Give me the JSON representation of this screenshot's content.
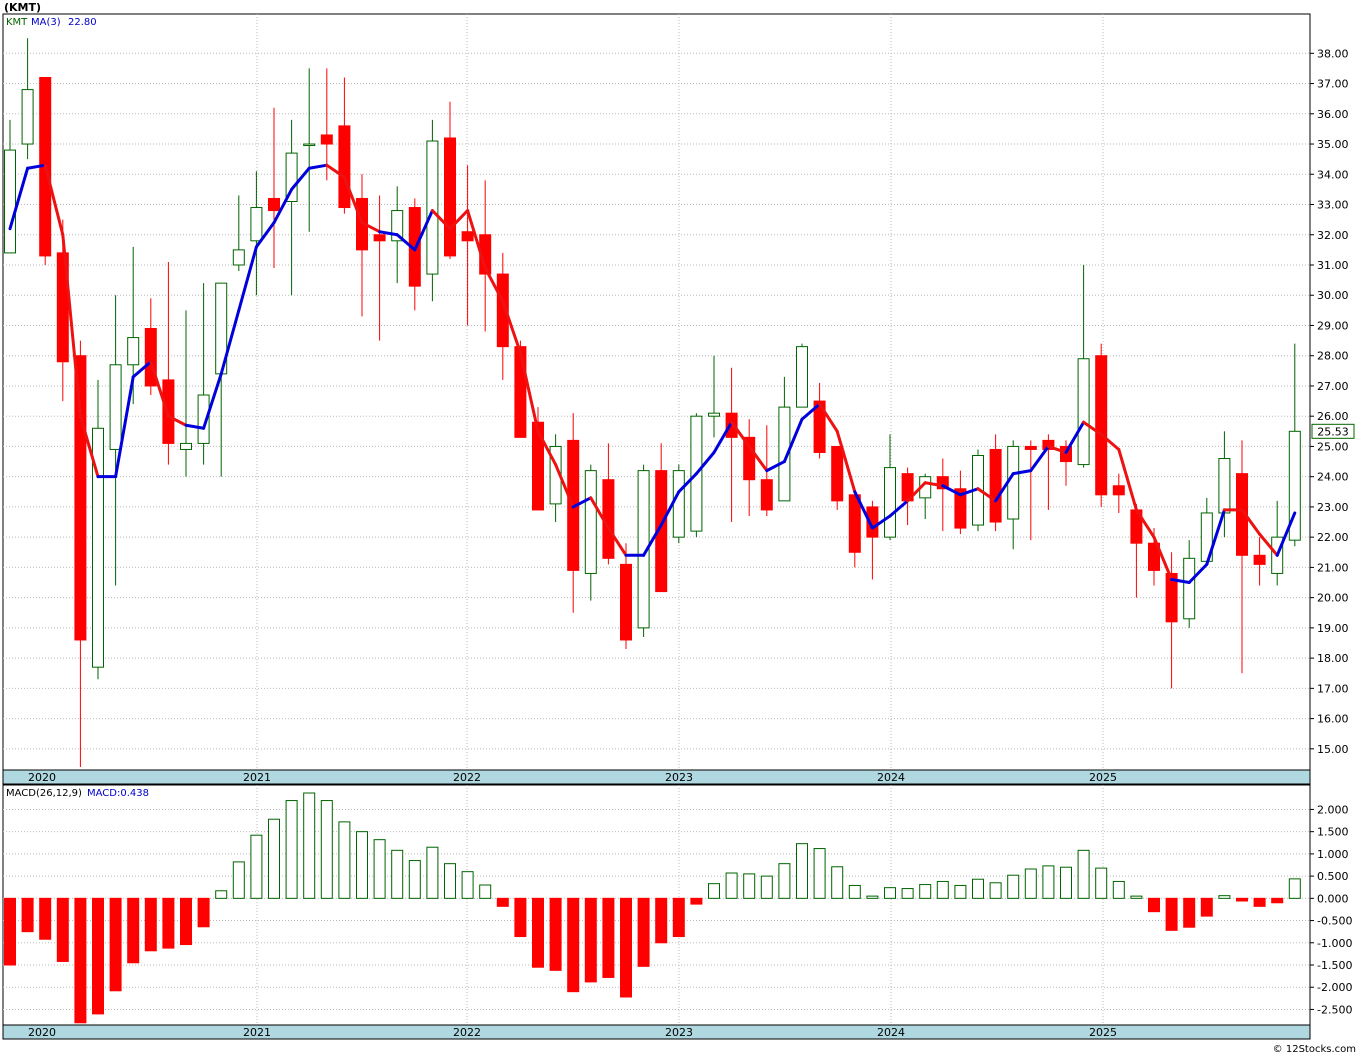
{
  "chart_data": [
    {
      "type": "candlestick",
      "title": "(KMT)",
      "legend": {
        "symbol": "KMT",
        "ma_label": "MA(3)",
        "ma_value": "22.80"
      },
      "last_price_label": "25.53",
      "ylim": [
        14.3,
        39.3
      ],
      "y_ticks": [
        "38.00",
        "37.00",
        "36.00",
        "35.00",
        "34.00",
        "33.00",
        "32.00",
        "31.00",
        "30.00",
        "29.00",
        "28.00",
        "27.00",
        "26.00",
        "25.00",
        "24.00",
        "23.00",
        "22.00",
        "21.00",
        "20.00",
        "19.00",
        "18.00",
        "17.00",
        "16.00",
        "15.00"
      ],
      "x_year_labels": [
        "2020",
        "2021",
        "2022",
        "2023",
        "2024",
        "2025"
      ],
      "colors": {
        "up": "#006400",
        "down": "#ff0000",
        "ma_up": "#0000dd",
        "ma_down": "#ee1111",
        "grid": "#bbbbbb",
        "axis_band": "#b0d8e0"
      },
      "months": [
        {
          "o": 31.4,
          "h": 35.8,
          "l": 31.4,
          "c": 34.8
        },
        {
          "o": 35.0,
          "h": 38.5,
          "l": 34.5,
          "c": 36.8
        },
        {
          "o": 37.2,
          "h": 37.2,
          "l": 31.0,
          "c": 31.3
        },
        {
          "o": 31.4,
          "h": 32.5,
          "l": 26.5,
          "c": 27.8
        },
        {
          "o": 28.0,
          "h": 28.5,
          "l": 14.4,
          "c": 18.6
        },
        {
          "o": 17.7,
          "h": 27.2,
          "l": 17.3,
          "c": 25.6
        },
        {
          "o": 24.9,
          "h": 30.0,
          "l": 20.4,
          "c": 27.7
        },
        {
          "o": 27.7,
          "h": 31.6,
          "l": 26.4,
          "c": 28.6
        },
        {
          "o": 28.9,
          "h": 29.9,
          "l": 26.7,
          "c": 27.0
        },
        {
          "o": 27.2,
          "h": 31.1,
          "l": 24.4,
          "c": 25.1
        },
        {
          "o": 24.9,
          "h": 29.5,
          "l": 24.0,
          "c": 25.1
        },
        {
          "o": 25.1,
          "h": 30.4,
          "l": 24.4,
          "c": 26.7
        },
        {
          "o": 27.4,
          "h": 30.4,
          "l": 24.0,
          "c": 30.4
        },
        {
          "o": 31.0,
          "h": 33.3,
          "l": 30.8,
          "c": 31.5
        },
        {
          "o": 31.8,
          "h": 34.1,
          "l": 30.0,
          "c": 32.9
        },
        {
          "o": 33.2,
          "h": 36.2,
          "l": 30.9,
          "c": 32.8
        },
        {
          "o": 33.1,
          "h": 35.8,
          "l": 30.0,
          "c": 34.7
        },
        {
          "o": 35.0,
          "h": 37.5,
          "l": 32.1,
          "c": 35.0
        },
        {
          "o": 35.3,
          "h": 37.5,
          "l": 33.8,
          "c": 35.0
        },
        {
          "o": 35.6,
          "h": 37.2,
          "l": 32.7,
          "c": 32.9
        },
        {
          "o": 33.2,
          "h": 34.0,
          "l": 29.3,
          "c": 31.5
        },
        {
          "o": 32.0,
          "h": 33.3,
          "l": 28.5,
          "c": 31.8
        },
        {
          "o": 31.8,
          "h": 33.6,
          "l": 30.4,
          "c": 32.8
        },
        {
          "o": 32.9,
          "h": 33.2,
          "l": 29.5,
          "c": 30.3
        },
        {
          "o": 30.7,
          "h": 35.8,
          "l": 29.8,
          "c": 35.1
        },
        {
          "o": 35.2,
          "h": 36.4,
          "l": 31.2,
          "c": 31.3
        },
        {
          "o": 32.1,
          "h": 34.3,
          "l": 29.0,
          "c": 31.8
        },
        {
          "o": 32.0,
          "h": 33.8,
          "l": 28.8,
          "c": 30.7
        },
        {
          "o": 30.7,
          "h": 31.4,
          "l": 27.2,
          "c": 28.3
        },
        {
          "o": 28.3,
          "h": 28.5,
          "l": 25.3,
          "c": 25.3
        },
        {
          "o": 25.8,
          "h": 26.3,
          "l": 22.9,
          "c": 22.9
        },
        {
          "o": 23.1,
          "h": 25.4,
          "l": 22.5,
          "c": 25.0
        },
        {
          "o": 25.2,
          "h": 26.1,
          "l": 19.5,
          "c": 20.9
        },
        {
          "o": 20.8,
          "h": 24.4,
          "l": 19.9,
          "c": 24.2
        },
        {
          "o": 23.9,
          "h": 25.1,
          "l": 21.1,
          "c": 21.3
        },
        {
          "o": 21.1,
          "h": 21.8,
          "l": 18.3,
          "c": 18.6
        },
        {
          "o": 19.0,
          "h": 24.4,
          "l": 18.7,
          "c": 24.2
        },
        {
          "o": 24.2,
          "h": 25.1,
          "l": 20.2,
          "c": 20.2
        },
        {
          "o": 22.0,
          "h": 24.4,
          "l": 21.8,
          "c": 24.2
        },
        {
          "o": 22.2,
          "h": 26.1,
          "l": 22.0,
          "c": 26.0
        },
        {
          "o": 26.0,
          "h": 28.0,
          "l": 25.3,
          "c": 26.1
        },
        {
          "o": 26.1,
          "h": 27.6,
          "l": 22.5,
          "c": 25.3
        },
        {
          "o": 25.3,
          "h": 25.9,
          "l": 22.7,
          "c": 23.9
        },
        {
          "o": 23.9,
          "h": 25.7,
          "l": 22.7,
          "c": 22.9
        },
        {
          "o": 23.2,
          "h": 27.3,
          "l": 23.2,
          "c": 26.3
        },
        {
          "o": 26.3,
          "h": 28.4,
          "l": 26.3,
          "c": 28.3
        },
        {
          "o": 26.5,
          "h": 27.1,
          "l": 24.6,
          "c": 24.8
        },
        {
          "o": 25.0,
          "h": 25.0,
          "l": 22.9,
          "c": 23.2
        },
        {
          "o": 23.4,
          "h": 23.5,
          "l": 21.0,
          "c": 21.5
        },
        {
          "o": 23.0,
          "h": 23.2,
          "l": 20.6,
          "c": 22.0
        },
        {
          "o": 22.0,
          "h": 25.4,
          "l": 21.9,
          "c": 24.3
        },
        {
          "o": 24.1,
          "h": 24.3,
          "l": 22.4,
          "c": 23.2
        },
        {
          "o": 23.3,
          "h": 24.1,
          "l": 22.6,
          "c": 24.0
        },
        {
          "o": 24.0,
          "h": 24.6,
          "l": 22.2,
          "c": 23.6
        },
        {
          "o": 23.6,
          "h": 24.2,
          "l": 22.1,
          "c": 22.3
        },
        {
          "o": 22.4,
          "h": 24.9,
          "l": 22.2,
          "c": 24.7
        },
        {
          "o": 24.9,
          "h": 25.4,
          "l": 22.2,
          "c": 22.5
        },
        {
          "o": 22.6,
          "h": 25.2,
          "l": 21.6,
          "c": 25.0
        },
        {
          "o": 25.0,
          "h": 25.2,
          "l": 21.9,
          "c": 24.9
        },
        {
          "o": 25.2,
          "h": 25.4,
          "l": 22.9,
          "c": 24.9
        },
        {
          "o": 25.0,
          "h": 25.2,
          "l": 23.7,
          "c": 24.5
        },
        {
          "o": 24.4,
          "h": 31.0,
          "l": 24.3,
          "c": 27.9
        },
        {
          "o": 28.0,
          "h": 28.4,
          "l": 23.0,
          "c": 23.4
        },
        {
          "o": 23.7,
          "h": 24.1,
          "l": 22.8,
          "c": 23.4
        },
        {
          "o": 22.9,
          "h": 23.1,
          "l": 20.0,
          "c": 21.8
        },
        {
          "o": 21.8,
          "h": 22.3,
          "l": 20.4,
          "c": 20.9
        },
        {
          "o": 20.8,
          "h": 21.5,
          "l": 17.0,
          "c": 19.2
        },
        {
          "o": 19.3,
          "h": 21.9,
          "l": 19.0,
          "c": 21.3
        },
        {
          "o": 21.2,
          "h": 23.3,
          "l": 21.2,
          "c": 22.8
        },
        {
          "o": 22.8,
          "h": 25.5,
          "l": 22.0,
          "c": 24.6
        },
        {
          "o": 24.1,
          "h": 25.2,
          "l": 17.5,
          "c": 21.4
        },
        {
          "o": 21.4,
          "h": 22.0,
          "l": 20.4,
          "c": 21.1
        },
        {
          "o": 20.8,
          "h": 23.2,
          "l": 20.4,
          "c": 22.0
        },
        {
          "o": 21.9,
          "h": 28.4,
          "l": 21.7,
          "c": 25.5
        }
      ],
      "ma3": [
        32.2,
        34.2,
        34.3,
        32.0,
        26.0,
        24.0,
        24.0,
        27.3,
        27.8,
        26.0,
        25.7,
        25.6,
        27.4,
        29.5,
        31.6,
        32.4,
        33.5,
        34.2,
        34.3,
        33.9,
        32.4,
        32.1,
        32.0,
        31.5,
        32.8,
        32.2,
        32.8,
        30.9,
        29.8,
        28.1,
        25.5,
        24.4,
        23.0,
        23.3,
        22.3,
        21.4,
        21.4,
        22.4,
        23.5,
        24.1,
        24.8,
        25.8,
        25.0,
        24.2,
        24.5,
        25.9,
        26.4,
        25.5,
        23.5,
        22.3,
        22.7,
        23.2,
        23.8,
        23.7,
        23.4,
        23.6,
        23.2,
        24.1,
        24.2,
        25.0,
        24.8,
        25.8,
        25.4,
        24.9,
        22.9,
        22.0,
        20.6,
        20.5,
        21.1,
        22.9,
        22.9,
        22.1,
        21.4,
        22.8
      ],
      "ma3_direction": [
        "up",
        "up",
        "up",
        "down",
        "down",
        "down",
        "up",
        "up",
        "up",
        "down",
        "down",
        "up",
        "up",
        "up",
        "up",
        "up",
        "up",
        "up",
        "up",
        "down",
        "down",
        "down",
        "up",
        "up",
        "up",
        "down",
        "down",
        "down",
        "down",
        "down",
        "down",
        "down",
        "down",
        "up",
        "down",
        "down",
        "up",
        "up",
        "up",
        "up",
        "up",
        "up",
        "down",
        "down",
        "up",
        "up",
        "up",
        "down",
        "down",
        "up",
        "up",
        "up",
        "down",
        "down",
        "up",
        "up",
        "down",
        "up",
        "up",
        "up",
        "down",
        "up",
        "down",
        "down",
        "down",
        "down",
        "down",
        "up",
        "up",
        "up",
        "down",
        "down",
        "down",
        "up"
      ],
      "ma3_shown_from": 1
    },
    {
      "type": "bar",
      "legend": {
        "label": "MACD(26,12,9)",
        "value_label": "MACD:0.438"
      },
      "ylim": [
        -2.85,
        2.55
      ],
      "y_ticks": [
        "2.000",
        "1.500",
        "1.000",
        "0.500",
        "0.000",
        "-0.500",
        "-1.000",
        "-1.500",
        "-2.000",
        "-2.500"
      ],
      "x_year_labels": [
        "2020",
        "2021",
        "2022",
        "2023",
        "2024",
        "2025"
      ],
      "values": [
        -1.5,
        -0.75,
        -0.92,
        -1.42,
        -2.8,
        -2.6,
        -2.08,
        -1.45,
        -1.18,
        -1.12,
        -1.04,
        -0.64,
        0.17,
        0.82,
        1.42,
        1.78,
        2.2,
        2.37,
        2.2,
        1.72,
        1.5,
        1.32,
        1.08,
        0.85,
        1.15,
        0.78,
        0.6,
        0.3,
        -0.18,
        -0.86,
        -1.55,
        -1.62,
        -2.1,
        -1.88,
        -1.78,
        -2.22,
        -1.53,
        -1.0,
        -0.86,
        -0.13,
        0.33,
        0.57,
        0.55,
        0.5,
        0.78,
        1.23,
        1.12,
        0.71,
        0.29,
        0.05,
        0.24,
        0.22,
        0.31,
        0.38,
        0.29,
        0.43,
        0.35,
        0.52,
        0.66,
        0.73,
        0.7,
        1.08,
        0.68,
        0.38,
        0.05,
        -0.3,
        -0.72,
        -0.65,
        -0.4,
        0.06,
        -0.06,
        -0.18,
        -0.1,
        0.438
      ]
    }
  ],
  "footer": {
    "credit": "© 12Stocks.com"
  }
}
